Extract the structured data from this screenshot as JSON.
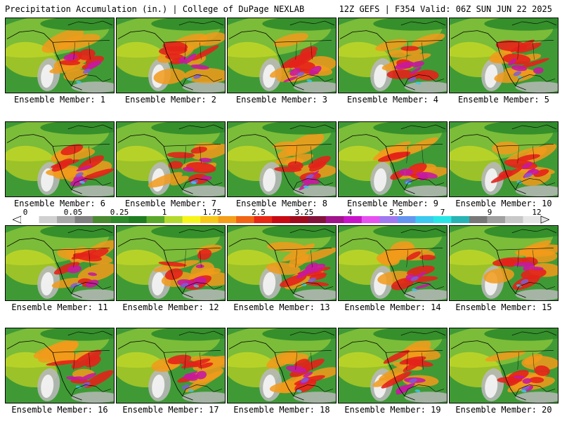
{
  "header": {
    "left": "Precipitation Accumulation (in.) | College of DuPage NEXLAB",
    "right": "12Z GEFS | F354 Valid: 06Z SUN JUN 22 2025"
  },
  "members": [
    "Ensemble Member: 1",
    "Ensemble Member: 2",
    "Ensemble Member: 3",
    "Ensemble Member: 4",
    "Ensemble Member: 5",
    "Ensemble Member: 6",
    "Ensemble Member: 7",
    "Ensemble Member: 8",
    "Ensemble Member: 9",
    "Ensemble Member: 10",
    "Ensemble Member: 11",
    "Ensemble Member: 12",
    "Ensemble Member: 13",
    "Ensemble Member: 14",
    "Ensemble Member: 15",
    "Ensemble Member: 16",
    "Ensemble Member: 17",
    "Ensemble Member: 18",
    "Ensemble Member: 19",
    "Ensemble Member: 20"
  ],
  "colorbar": {
    "ticks": [
      "0",
      "0.05",
      "0.25",
      "1",
      "1.75",
      "2.5",
      "3.25",
      "4",
      "5.5",
      "7",
      "9",
      "12"
    ],
    "colors": [
      "#ffffff",
      "#d0d0d0",
      "#a8a8a8",
      "#808080",
      "#4a8a30",
      "#2e8a2a",
      "#1f7d1f",
      "#5aa829",
      "#b3d92e",
      "#f5f51a",
      "#f5c81a",
      "#f59e1a",
      "#f06414",
      "#e62814",
      "#c80a14",
      "#a00a1e",
      "#82143c",
      "#a0148c",
      "#c814c8",
      "#e650f0",
      "#a078f0",
      "#6496f0",
      "#3cc8f0",
      "#28e6e6",
      "#28b4b4",
      "#787878",
      "#a0a0a0",
      "#c8c8c8",
      "#e6e6e6"
    ]
  },
  "field_colors": {
    "land_green": "#2e8a2a",
    "ocean_green": "#3f9a36",
    "light_green": "#86c23a",
    "yellow": "#e8e41e",
    "orange": "#f29a1a",
    "red": "#e3221a",
    "dark_red": "#a3101a",
    "magenta": "#c71a9e",
    "purple": "#7b5ed6",
    "cyan": "#40c6e6",
    "gray": "#b8b8b8",
    "white": "#f2f2f2",
    "border": "#000000"
  }
}
